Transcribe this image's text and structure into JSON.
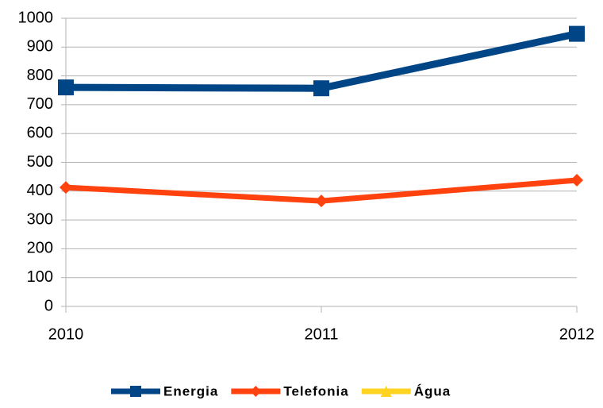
{
  "chart_data": {
    "type": "line",
    "categories": [
      "2010",
      "2011",
      "2012"
    ],
    "series": [
      {
        "name": "Energia",
        "color": "#004586",
        "marker": "square",
        "values": [
          760,
          757,
          946
        ]
      },
      {
        "name": "Telefonia",
        "color": "#ff420e",
        "marker": "diamond",
        "values": [
          413,
          366,
          438
        ]
      },
      {
        "name": "Água",
        "color": "#ffd320",
        "marker": "triangle",
        "values": [
          null,
          null,
          null
        ]
      }
    ],
    "ylim": [
      0,
      1000
    ],
    "yticks": [
      0,
      100,
      200,
      300,
      400,
      500,
      600,
      700,
      800,
      900,
      1000
    ],
    "grid": true,
    "legend": "bottom"
  }
}
